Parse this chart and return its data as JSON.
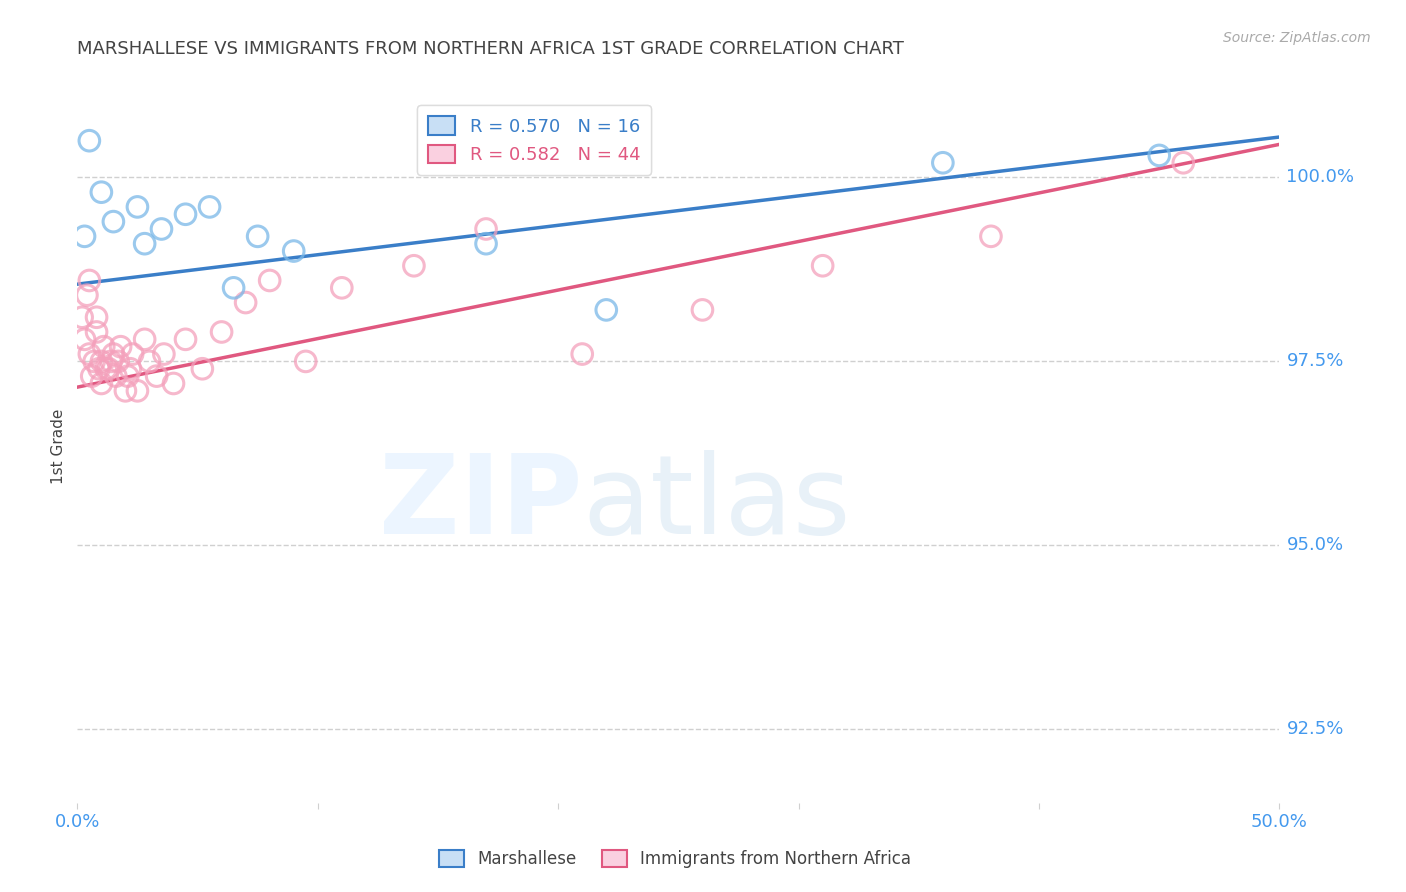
{
  "title": "MARSHALLESE VS IMMIGRANTS FROM NORTHERN AFRICA 1ST GRADE CORRELATION CHART",
  "source": "Source: ZipAtlas.com",
  "ylabel": "1st Grade",
  "xlim": [
    0.0,
    50.0
  ],
  "ylim": [
    91.5,
    101.2
  ],
  "yticks": [
    92.5,
    95.0,
    97.5,
    100.0
  ],
  "ytick_labels": [
    "92.5%",
    "95.0%",
    "97.5%",
    "100.0%"
  ],
  "legend_label1": "R = 0.570   N = 16",
  "legend_label2": "R = 0.582   N = 44",
  "marshallese_color": "#7ab8e8",
  "northern_africa_color": "#f4a0bb",
  "blue_line_color": "#3a7ec8",
  "pink_line_color": "#e05880",
  "background_color": "#ffffff",
  "grid_color": "#d0d0d0",
  "title_color": "#444444",
  "axis_label_color": "#4499ee",
  "marshallese_x": [
    0.3,
    0.5,
    1.0,
    1.5,
    2.5,
    2.8,
    3.5,
    4.5,
    5.5,
    6.5,
    7.5,
    9.0,
    17.0,
    22.0,
    36.0,
    45.0
  ],
  "marshallese_y": [
    99.2,
    100.5,
    99.8,
    99.4,
    99.6,
    99.1,
    99.3,
    99.5,
    99.6,
    98.5,
    99.2,
    99.0,
    99.1,
    98.2,
    100.2,
    100.3
  ],
  "northern_africa_x": [
    0.2,
    0.3,
    0.4,
    0.5,
    0.5,
    0.6,
    0.7,
    0.8,
    0.8,
    0.9,
    1.0,
    1.0,
    1.1,
    1.2,
    1.3,
    1.4,
    1.5,
    1.6,
    1.7,
    1.8,
    2.0,
    2.1,
    2.2,
    2.3,
    2.5,
    2.8,
    3.0,
    3.3,
    3.6,
    4.0,
    4.5,
    5.2,
    6.0,
    7.0,
    8.0,
    9.5,
    11.0,
    14.0,
    17.0,
    21.0,
    26.0,
    31.0,
    38.0,
    46.0
  ],
  "northern_africa_y": [
    98.1,
    97.8,
    98.4,
    98.6,
    97.6,
    97.3,
    97.5,
    97.9,
    98.1,
    97.4,
    97.2,
    97.5,
    97.7,
    97.4,
    97.4,
    97.5,
    97.6,
    97.3,
    97.5,
    97.7,
    97.1,
    97.3,
    97.4,
    97.6,
    97.1,
    97.8,
    97.5,
    97.3,
    97.6,
    97.2,
    97.8,
    97.4,
    97.9,
    98.3,
    98.6,
    97.5,
    98.5,
    98.8,
    99.3,
    97.6,
    98.2,
    98.8,
    99.2,
    100.2
  ],
  "blue_line_x0": 0.0,
  "blue_line_y0": 98.55,
  "blue_line_x1": 50.0,
  "blue_line_y1": 100.55,
  "pink_line_x0": 0.0,
  "pink_line_y0": 97.15,
  "pink_line_x1": 50.0,
  "pink_line_y1": 100.45
}
